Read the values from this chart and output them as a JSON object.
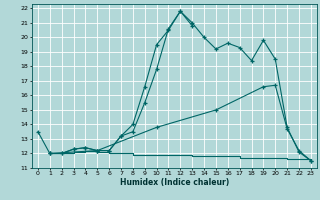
{
  "xlabel": "Humidex (Indice chaleur)",
  "bg_color": "#b2d8d8",
  "grid_color": "#ffffff",
  "line_color": "#006666",
  "xlim": [
    -0.5,
    23.5
  ],
  "ylim": [
    11,
    22.3
  ],
  "yticks": [
    11,
    12,
    13,
    14,
    15,
    16,
    17,
    18,
    19,
    20,
    21,
    22
  ],
  "xticks": [
    0,
    1,
    2,
    3,
    4,
    5,
    6,
    7,
    8,
    9,
    10,
    11,
    12,
    13,
    14,
    15,
    16,
    17,
    18,
    19,
    20,
    21,
    22,
    23
  ],
  "line1_x": [
    0,
    1,
    2,
    3,
    4,
    5,
    6,
    7,
    8,
    9,
    10,
    11,
    12,
    13,
    14,
    15,
    16,
    17,
    18,
    19,
    20,
    21,
    22,
    23
  ],
  "line1_y": [
    13.5,
    12.0,
    12.0,
    12.3,
    12.4,
    12.2,
    12.2,
    13.2,
    14.0,
    16.6,
    19.5,
    20.5,
    21.8,
    21.0,
    20.0,
    19.2,
    19.6,
    19.3,
    18.4,
    19.8,
    18.5,
    13.8,
    12.1,
    11.5
  ],
  "line2_x": [
    1,
    2,
    3,
    4,
    5,
    6,
    7,
    8,
    9,
    10,
    11,
    12,
    13
  ],
  "line2_y": [
    12.0,
    12.0,
    12.3,
    12.4,
    12.2,
    12.2,
    13.2,
    13.5,
    15.5,
    17.8,
    20.6,
    21.8,
    20.8
  ],
  "line3_x": [
    1,
    2,
    3,
    4,
    5,
    6,
    7,
    8,
    9,
    10,
    11,
    12,
    13,
    14,
    15,
    16,
    17,
    18,
    19,
    20,
    21,
    22,
    23
  ],
  "line3_y": [
    12.0,
    12.0,
    12.1,
    12.2,
    12.1,
    12.0,
    12.0,
    11.9,
    11.9,
    11.9,
    11.9,
    11.9,
    11.8,
    11.8,
    11.8,
    11.8,
    11.7,
    11.7,
    11.7,
    11.7,
    11.6,
    11.6,
    11.5
  ],
  "line4_x": [
    1,
    5,
    10,
    15,
    19,
    20,
    21,
    22,
    23
  ],
  "line4_y": [
    12.0,
    12.2,
    13.8,
    15.0,
    16.6,
    16.7,
    13.7,
    12.2,
    11.5
  ]
}
